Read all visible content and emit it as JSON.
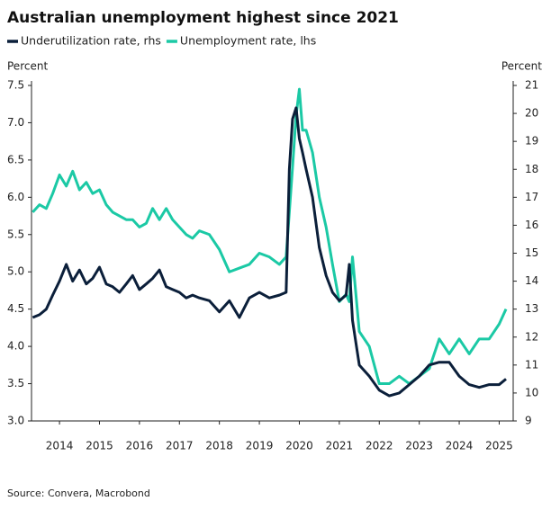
{
  "chart_data": {
    "type": "line",
    "title": "Australian unemployment highest since 2021",
    "ylabel": "Percent",
    "y2label": "Percent",
    "source": "Source: Convera, Macrobond",
    "x": [
      2013.83,
      2014.0,
      2014.17,
      2014.33,
      2014.5,
      2014.67,
      2014.83,
      2015.0,
      2015.17,
      2015.33,
      2015.5,
      2015.67,
      2015.83,
      2016.0,
      2016.17,
      2016.33,
      2016.5,
      2016.67,
      2016.83,
      2017.0,
      2017.17,
      2017.33,
      2017.5,
      2017.67,
      2017.83,
      2018.0,
      2018.25,
      2018.5,
      2018.75,
      2019.0,
      2019.25,
      2019.5,
      2019.75,
      2020.0,
      2020.17,
      2020.25,
      2020.33,
      2020.42,
      2020.5,
      2020.58,
      2020.67,
      2020.83,
      2021.0,
      2021.17,
      2021.33,
      2021.5,
      2021.67,
      2021.75,
      2021.83,
      2022.0,
      2022.25,
      2022.5,
      2022.75,
      2023.0,
      2023.25,
      2023.5,
      2023.75,
      2024.0,
      2024.25,
      2024.5,
      2024.75,
      2025.0,
      2025.25,
      2025.5,
      2025.67
    ],
    "series": [
      {
        "name": "Underutilization rate, rhs",
        "color": "#0b1f3a",
        "axis": "y2",
        "values": [
          12.7,
          12.8,
          13.0,
          13.5,
          14.0,
          14.6,
          14.0,
          14.4,
          13.9,
          14.1,
          14.5,
          13.9,
          13.8,
          13.6,
          13.9,
          14.2,
          13.7,
          13.9,
          14.1,
          14.4,
          13.8,
          13.7,
          13.6,
          13.4,
          13.5,
          13.4,
          13.3,
          12.9,
          13.3,
          12.7,
          13.4,
          13.6,
          13.4,
          13.5,
          13.6,
          18.0,
          19.8,
          20.2,
          19.1,
          18.6,
          18.0,
          17.0,
          15.2,
          14.2,
          13.6,
          13.3,
          13.5,
          14.6,
          12.6,
          11.0,
          10.6,
          10.1,
          9.9,
          10.0,
          10.3,
          10.6,
          11.0,
          11.1,
          11.1,
          10.6,
          10.3,
          10.2,
          10.3,
          10.3,
          10.5
        ]
      },
      {
        "name": "Unemployment rate, lhs",
        "color": "#1bc9a5",
        "values": [
          5.8,
          5.9,
          5.85,
          6.05,
          6.3,
          6.15,
          6.35,
          6.1,
          6.2,
          6.05,
          6.1,
          5.9,
          5.8,
          5.75,
          5.7,
          5.7,
          5.6,
          5.65,
          5.85,
          5.7,
          5.85,
          5.7,
          5.6,
          5.5,
          5.45,
          5.55,
          5.5,
          5.3,
          5.0,
          5.05,
          5.1,
          5.25,
          5.2,
          5.1,
          5.2,
          5.8,
          6.4,
          7.1,
          7.45,
          6.9,
          6.9,
          6.6,
          6.0,
          5.6,
          5.1,
          4.6,
          4.7,
          4.6,
          5.2,
          4.2,
          4.0,
          3.5,
          3.5,
          3.6,
          3.5,
          3.6,
          3.7,
          4.1,
          3.9,
          4.1,
          3.9,
          4.1,
          4.1,
          4.3,
          4.5
        ]
      }
    ],
    "xlim": [
      2013.8,
      2025.85
    ],
    "xticks": [
      {
        "value": 2014.5,
        "label": "2014"
      },
      {
        "value": 2015.5,
        "label": "2015"
      },
      {
        "value": 2016.5,
        "label": "2016"
      },
      {
        "value": 2017.5,
        "label": "2017"
      },
      {
        "value": 2018.5,
        "label": "2018"
      },
      {
        "value": 2019.5,
        "label": "2019"
      },
      {
        "value": 2020.5,
        "label": "2020"
      },
      {
        "value": 2021.5,
        "label": "2021"
      },
      {
        "value": 2022.5,
        "label": "2022"
      },
      {
        "value": 2023.5,
        "label": "2023"
      },
      {
        "value": 2024.5,
        "label": "2024"
      },
      {
        "value": 2025.5,
        "label": "2025"
      }
    ],
    "ylim": [
      3,
      7.5
    ],
    "yticks": [
      {
        "value": 3,
        "label": "3.0"
      },
      3.5,
      {
        "value": 4,
        "label": "4.0"
      },
      4.5,
      {
        "value": 5,
        "label": "5.0"
      },
      5.5,
      {
        "value": 6,
        "label": "6.0"
      },
      6.5,
      {
        "value": 7,
        "label": "7.0"
      },
      7.5
    ],
    "y2lim": [
      9,
      21
    ],
    "y2ticks": [
      9,
      10,
      11,
      12,
      13,
      14,
      15,
      16,
      17,
      18,
      19,
      20,
      21
    ],
    "legend": "top-left"
  }
}
